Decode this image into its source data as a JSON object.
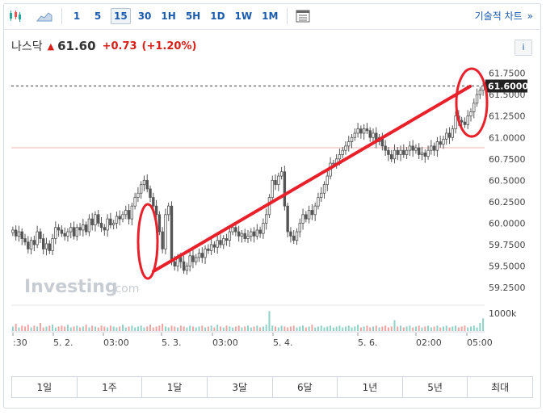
{
  "toolbar": {
    "intervals": [
      "1",
      "5",
      "15",
      "30",
      "1H",
      "5H",
      "1D",
      "1W",
      "1M"
    ],
    "active_interval": "15",
    "tech_chart_label": "기술적 차트",
    "tech_chart_arrow": "»"
  },
  "header": {
    "name": "나스닥",
    "price": "61.60",
    "change": "+0.73",
    "change_pct": "(+1.20%)",
    "info_label": "i"
  },
  "watermark": {
    "brand": "Investing",
    "suffix": ".com"
  },
  "price_tag": "61.6000",
  "volume_label": "1000k",
  "ranges": [
    "1일",
    "1주",
    "1달",
    "3달",
    "6달",
    "1년",
    "5년",
    "최대"
  ],
  "colors": {
    "up": "#26a69a",
    "down": "#ef5350",
    "candle": "#555555",
    "annotation": "#e8202a",
    "accent": "#1c5cad"
  },
  "chart_data": {
    "type": "candlestick",
    "y_ticks": [
      "61.7500",
      "61.5000",
      "61.2500",
      "61.0000",
      "60.7500",
      "60.5000",
      "60.2500",
      "60.0000",
      "59.7500",
      "59.5000",
      "59.2500"
    ],
    "x_ticks": [
      ":30",
      "5. 2.",
      "03:00",
      "5. 3.",
      "03:00",
      "5. 4.",
      "5. 6.",
      "02:00",
      "05:00"
    ],
    "ylim": [
      59.1,
      61.85
    ],
    "current_price": 61.6,
    "reference_level": 60.88,
    "close": [
      59.92,
      59.85,
      59.9,
      59.82,
      59.78,
      59.7,
      59.8,
      59.75,
      59.9,
      59.82,
      59.7,
      59.76,
      59.68,
      59.82,
      59.95,
      59.92,
      59.88,
      59.85,
      59.9,
      59.95,
      59.85,
      59.95,
      59.92,
      59.98,
      59.9,
      60.05,
      59.98,
      60.1,
      60.0,
      59.95,
      59.92,
      60.05,
      59.98,
      60.0,
      60.08,
      60.05,
      60.1,
      60.15,
      60.05,
      60.2,
      60.3,
      60.35,
      60.45,
      60.5,
      60.4,
      60.3,
      60.2,
      60.1,
      59.9,
      59.7,
      60.1,
      60.2,
      59.55,
      59.5,
      59.6,
      59.55,
      59.45,
      59.5,
      59.62,
      59.55,
      59.6,
      59.65,
      59.6,
      59.7,
      59.68,
      59.75,
      59.72,
      59.8,
      59.75,
      59.82,
      59.8,
      59.9,
      59.95,
      59.9,
      59.85,
      59.88,
      59.82,
      59.85,
      59.9,
      59.85,
      59.92,
      59.88,
      60.0,
      60.1,
      60.3,
      60.5,
      60.45,
      60.55,
      60.6,
      60.2,
      59.9,
      59.85,
      59.8,
      59.9,
      60.0,
      60.1,
      60.05,
      60.15,
      60.1,
      60.2,
      60.3,
      60.35,
      60.45,
      60.55,
      60.7,
      60.7,
      60.75,
      60.8,
      60.85,
      60.9,
      60.95,
      61.0,
      61.05,
      61.1,
      61.05,
      61.1,
      61.08,
      61.0,
      61.05,
      60.95,
      61.0,
      60.9,
      60.85,
      60.8,
      60.75,
      60.85,
      60.8,
      60.85,
      60.8,
      60.85,
      60.9,
      60.85,
      60.88,
      60.8,
      60.82,
      60.78,
      60.85,
      60.9,
      60.85,
      60.95,
      60.92,
      60.98,
      61.05,
      61.0,
      61.1,
      61.25,
      61.2,
      61.18,
      61.15,
      61.25,
      61.3,
      61.4,
      61.5,
      61.55,
      61.6
    ],
    "volume": [
      5,
      8,
      4,
      6,
      5,
      7,
      4,
      6,
      5,
      9,
      4,
      5,
      6,
      7,
      4,
      5,
      6,
      5,
      7,
      4,
      5,
      6,
      4,
      5,
      7,
      4,
      6,
      5,
      4,
      6,
      5,
      4,
      6,
      5,
      4,
      5,
      7,
      4,
      5,
      6,
      4,
      5,
      6,
      4,
      5,
      7,
      4,
      5,
      6,
      8,
      5,
      4,
      6,
      5,
      4,
      6,
      5,
      4,
      6,
      5,
      4,
      5,
      6,
      4,
      5,
      6,
      4,
      7,
      5,
      4,
      6,
      5,
      4,
      5,
      6,
      4,
      5,
      6,
      4,
      5,
      6,
      4,
      5,
      7,
      22,
      6,
      5,
      4,
      6,
      5,
      4,
      5,
      6,
      4,
      5,
      6,
      4,
      5,
      7,
      4,
      5,
      6,
      4,
      5,
      6,
      4,
      5,
      6,
      4,
      5,
      6,
      4,
      5,
      7,
      4,
      5,
      6,
      4,
      5,
      6,
      4,
      5,
      6,
      4,
      5,
      12,
      5,
      6,
      4,
      5,
      6,
      4,
      5,
      6,
      4,
      5,
      6,
      4,
      5,
      6,
      4,
      5,
      6,
      4,
      5,
      6,
      4,
      5,
      6,
      4,
      5,
      6,
      4,
      9,
      14
    ]
  }
}
